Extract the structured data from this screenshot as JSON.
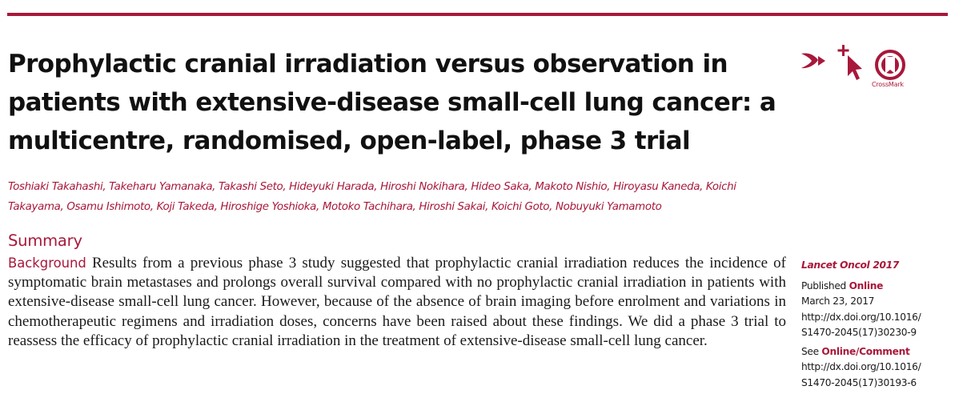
{
  "article": {
    "title": "Prophylactic cranial irradiation versus observation in patients with extensive-disease small-cell lung cancer: a multicentre, randomised, open-label, phase 3 trial",
    "authors": "Toshiaki Takahashi, Takeharu Yamanaka, Takashi Seto, Hideyuki Harada, Hiroshi Nokihara, Hideo Saka, Makoto Nishio, Hiroyasu Kaneda, Koichi Takayama, Osamu Ishimoto, Koji Takeda, Hiroshige Yoshioka, Motoko Tachihara, Hiroshi Sakai, Koichi Goto, Nobuyuki Yamamoto",
    "summary_heading": "Summary",
    "background_label": "Background",
    "background_text": "Results from a previous phase 3 study suggested that prophylactic cranial irradiation reduces the incidence of symptomatic brain metastases and prolongs overall survival compared with no prophylactic cranial irradiation in patients with extensive-disease small-cell lung cancer. However, because of the absence of brain imaging before enrolment and variations in chemotherapeutic regimens and irradiation doses, concerns have been raised about these findings. We did a phase 3 trial to reassess the efficacy of prophylactic cranial irradiation in the treatment of extensive-disease small-cell lung cancer."
  },
  "icons": {
    "share": "share-icon",
    "click": "cursor-click-icon",
    "crossmark": "crossmark-icon",
    "crossmark_label": "CrossMark"
  },
  "sidebar": {
    "journal": "Lancet Oncol 2017",
    "published_prefix": "Published ",
    "published_status": "Online",
    "published_date": "March 23, 2017",
    "doi_line1": "http://dx.doi.org/10.1016/",
    "doi_line2": "S1470-2045(17)30230-9",
    "see_prefix": "See ",
    "see_link": "Online/Comment",
    "see_doi_line1": "http://dx.doi.org/10.1016/",
    "see_doi_line2": "S1470-2045(17)30193-6"
  },
  "colors": {
    "accent": "#a8183a",
    "text": "#1a1a1a"
  }
}
